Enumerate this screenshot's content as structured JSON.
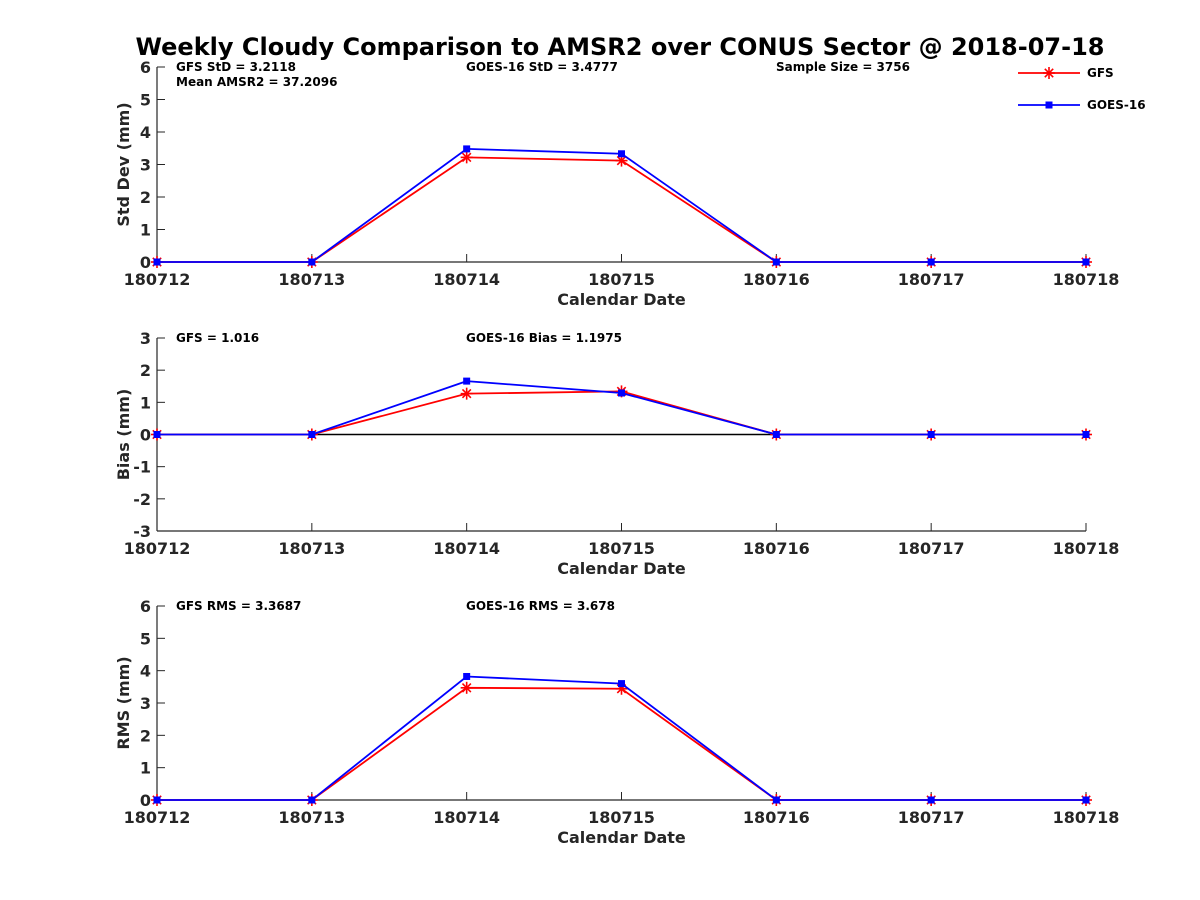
{
  "title": "Weekly Cloudy Comparison to AMSR2 over CONUS Sector @ 2018-07-18",
  "legend": {
    "placement": "top-right",
    "entries": [
      {
        "name": "GFS",
        "color": "#ff0000",
        "marker": "asterisk"
      },
      {
        "name": "GOES-16",
        "color": "#0000ff",
        "marker": "square"
      }
    ]
  },
  "chart_data": [
    {
      "type": "line",
      "x": [
        "180712",
        "180713",
        "180714",
        "180715",
        "180716",
        "180717",
        "180718"
      ],
      "xlabel": "Calendar Date",
      "ylabel": "Std Dev (mm)",
      "ylim": [
        0,
        6
      ],
      "yticks": [
        "0",
        "1",
        "2",
        "3",
        "4",
        "5",
        "6"
      ],
      "zero_line": false,
      "series": [
        {
          "name": "GFS",
          "color": "#ff0000",
          "marker": "asterisk",
          "values": [
            0,
            0,
            3.22,
            3.12,
            0,
            0,
            0
          ]
        },
        {
          "name": "GOES-16",
          "color": "#0000ff",
          "marker": "square",
          "values": [
            0,
            0,
            3.48,
            3.33,
            0,
            0,
            0
          ]
        }
      ],
      "annotations": [
        {
          "anchor": "left",
          "lines": [
            "GFS StD = 3.2118",
            "Mean AMSR2 = 37.2096"
          ]
        },
        {
          "anchor": "center",
          "lines": [
            "GOES-16 StD = 3.4777"
          ]
        },
        {
          "anchor": "right",
          "lines": [
            "Sample Size = 3756"
          ]
        }
      ]
    },
    {
      "type": "line",
      "x": [
        "180712",
        "180713",
        "180714",
        "180715",
        "180716",
        "180717",
        "180718"
      ],
      "xlabel": "Calendar Date",
      "ylabel": "Bias (mm)",
      "ylim": [
        -3,
        3
      ],
      "yticks": [
        "-3",
        "-2",
        "-1",
        "0",
        "1",
        "2",
        "3"
      ],
      "zero_line": true,
      "series": [
        {
          "name": "GFS",
          "color": "#ff0000",
          "marker": "asterisk",
          "values": [
            0,
            0,
            1.27,
            1.34,
            0,
            0,
            0
          ]
        },
        {
          "name": "GOES-16",
          "color": "#0000ff",
          "marker": "square",
          "values": [
            0,
            0,
            1.66,
            1.29,
            0,
            0,
            0
          ]
        }
      ],
      "annotations": [
        {
          "anchor": "left",
          "lines": [
            "GFS = 1.016"
          ]
        },
        {
          "anchor": "center",
          "lines": [
            "GOES-16 Bias  = 1.1975"
          ]
        }
      ]
    },
    {
      "type": "line",
      "x": [
        "180712",
        "180713",
        "180714",
        "180715",
        "180716",
        "180717",
        "180718"
      ],
      "xlabel": "Calendar Date",
      "ylabel": "RMS (mm)",
      "ylim": [
        0,
        6
      ],
      "yticks": [
        "0",
        "1",
        "2",
        "3",
        "4",
        "5",
        "6"
      ],
      "zero_line": false,
      "series": [
        {
          "name": "GFS",
          "color": "#ff0000",
          "marker": "asterisk",
          "values": [
            0,
            0,
            3.47,
            3.44,
            0,
            0,
            0
          ]
        },
        {
          "name": "GOES-16",
          "color": "#0000ff",
          "marker": "square",
          "values": [
            0,
            0,
            3.82,
            3.6,
            0,
            0,
            0
          ]
        }
      ],
      "annotations": [
        {
          "anchor": "left",
          "lines": [
            "GFS RMS = 3.3687"
          ]
        },
        {
          "anchor": "center",
          "lines": [
            "GOES-16 RMS = 3.678"
          ]
        }
      ]
    }
  ]
}
